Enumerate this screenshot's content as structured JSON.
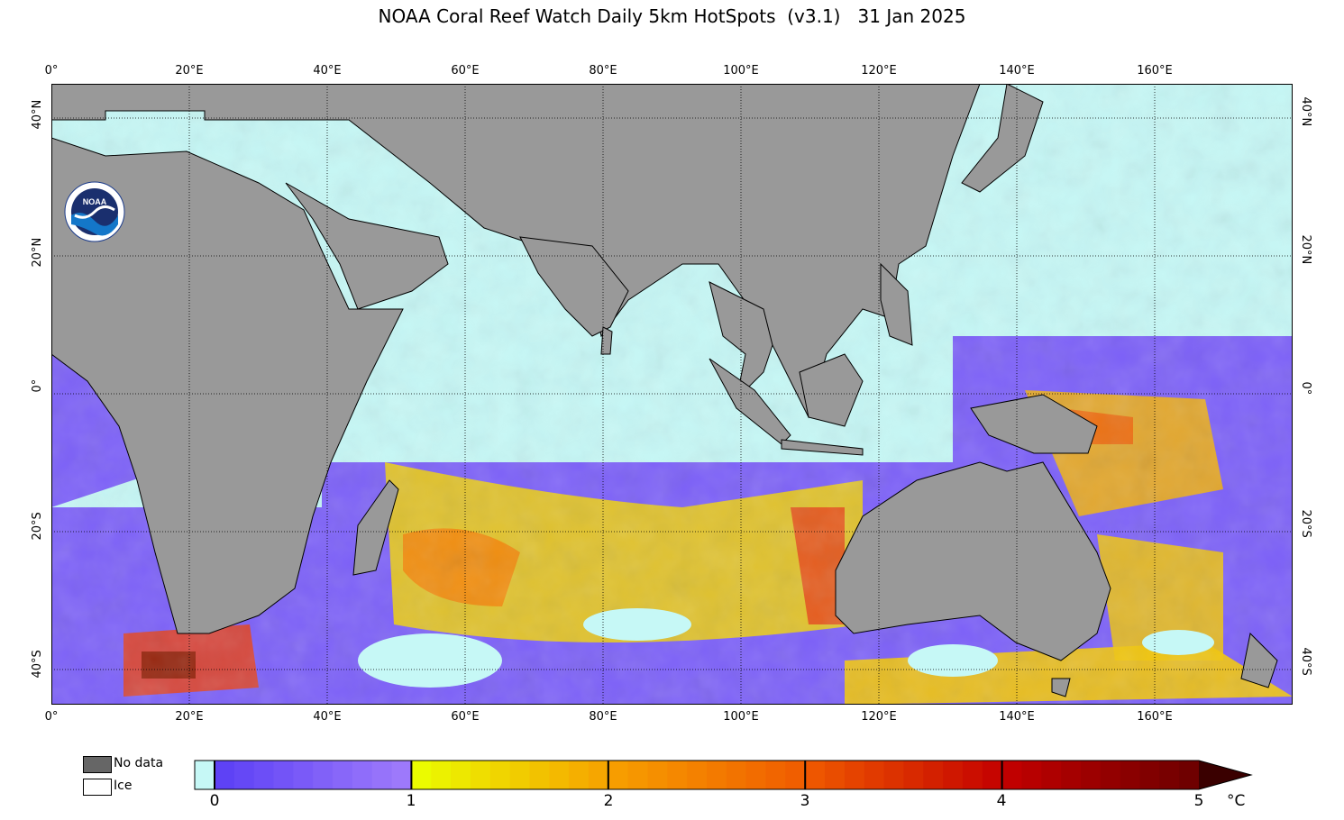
{
  "title": "NOAA Coral Reef Watch Daily 5km HotSpots  (v3.1)   31 Jan 2025",
  "map": {
    "lon_range": [
      0,
      180
    ],
    "lat_range": [
      -45,
      45
    ],
    "lon_ticks": [
      "0°",
      "20°E",
      "40°E",
      "60°E",
      "80°E",
      "100°E",
      "120°E",
      "140°E",
      "160°E"
    ],
    "lat_ticks_left": [
      "40°N",
      "20°N",
      "0°",
      "20°S",
      "40°S"
    ],
    "lat_ticks_right": [
      "40°N",
      "20°N",
      "0°",
      "20°S",
      "40°S"
    ],
    "gridlines": "dotted",
    "colors": {
      "ocean_zero": "#c6f8f6",
      "land": "#999999",
      "coast": "#000000"
    }
  },
  "logo": {
    "text": "NOAA",
    "icon": "noaa-logo-icon"
  },
  "legend": {
    "no_data_label": "No data",
    "ice_label": "Ice"
  },
  "colorbar": {
    "ticks": [
      "0",
      "1",
      "2",
      "3",
      "4",
      "5"
    ],
    "unit": "°C",
    "range": [
      0,
      5
    ],
    "colors": [
      "#c6f8f6",
      "#5b3ff5",
      "#7a5af9",
      "#a07cfb",
      "#eaff00",
      "#f5c400",
      "#f7a100",
      "#f77f00",
      "#f05a00",
      "#e83a10",
      "#c40000",
      "#8e1a00",
      "#6b0000",
      "#3a0000"
    ]
  }
}
